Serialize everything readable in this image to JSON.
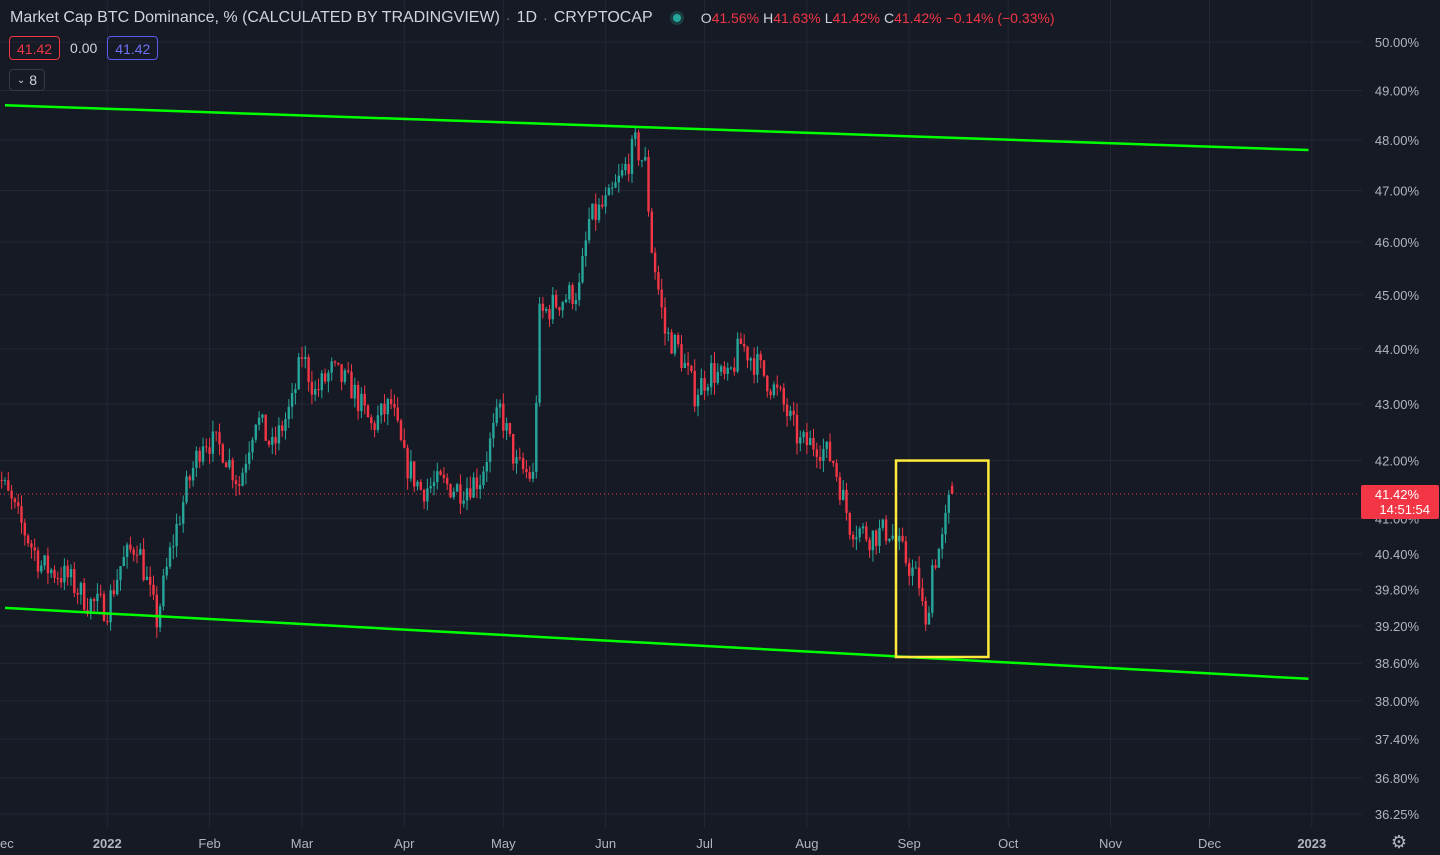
{
  "legend": {
    "title": "Market Cap BTC Dominance, % (CALCULATED BY TRADINGVIEW)",
    "interval": "1D",
    "exchange": "CRYPTOCAP",
    "o_label": "O",
    "o_value": "41.56%",
    "h_label": "H",
    "h_value": "41.63%",
    "l_label": "L",
    "l_value": "41.42%",
    "c_label": "C",
    "c_value": "41.42%",
    "change": "−0.14% (−0.33%)"
  },
  "indicator_inputs": {
    "sell": "41.42",
    "spread": "0.00",
    "buy": "41.42",
    "collapse_count": "8"
  },
  "price_axis": {
    "ticks": [
      {
        "label": "50.00%",
        "value": 50.0
      },
      {
        "label": "49.00%",
        "value": 49.0
      },
      {
        "label": "48.00%",
        "value": 48.0
      },
      {
        "label": "47.00%",
        "value": 47.0
      },
      {
        "label": "46.00%",
        "value": 46.0
      },
      {
        "label": "45.00%",
        "value": 45.0
      },
      {
        "label": "44.00%",
        "value": 44.0
      },
      {
        "label": "43.00%",
        "value": 43.0
      },
      {
        "label": "42.00%",
        "value": 42.0
      },
      {
        "label": "41.00%",
        "value": 41.0
      },
      {
        "label": "40.40%",
        "value": 40.4
      },
      {
        "label": "39.80%",
        "value": 39.8
      },
      {
        "label": "39.20%",
        "value": 39.2
      },
      {
        "label": "38.60%",
        "value": 38.6
      },
      {
        "label": "38.00%",
        "value": 38.0
      },
      {
        "label": "37.40%",
        "value": 37.4
      },
      {
        "label": "36.80%",
        "value": 36.8
      },
      {
        "label": "36.25%",
        "value": 36.25
      }
    ],
    "scale": "log",
    "current_price": "41.42%",
    "countdown": "14:51:54"
  },
  "time_axis": {
    "labels": [
      "ec",
      "2022",
      "Feb",
      "Mar",
      "Apr",
      "May",
      "Jun",
      "Jul",
      "Aug",
      "Sep",
      "Oct",
      "Nov",
      "Dec",
      "2023"
    ],
    "bold": [
      "2022",
      "2023"
    ]
  },
  "colors": {
    "background": "#161a25",
    "up": "#26a69a",
    "down": "#f23645",
    "channel": "#00ff00",
    "highlight_box": "#ffeb3b",
    "price_tag": "#f23645"
  },
  "drawings": {
    "channel_upper": {
      "start": [
        "2021-12-01",
        48.7
      ],
      "end": [
        "2022-12-31",
        47.8
      ]
    },
    "channel_lower": {
      "start": [
        "2021-12-01",
        39.5
      ],
      "end": [
        "2022-12-31",
        38.35
      ]
    },
    "highlight_box": {
      "from": "2022-08-28",
      "to": "2022-09-25",
      "top": 42.0,
      "bottom": 38.7
    }
  },
  "chart_data": {
    "type": "candlestick",
    "interval": "1D",
    "anchors": [
      {
        "date": "2021-11-27",
        "close": 42.0
      },
      {
        "date": "2021-12-05",
        "close": 41.0
      },
      {
        "date": "2021-12-12",
        "close": 40.2
      },
      {
        "date": "2021-12-20",
        "close": 40.0
      },
      {
        "date": "2021-12-26",
        "close": 39.6
      },
      {
        "date": "2022-01-01",
        "close": 39.5
      },
      {
        "date": "2022-01-05",
        "close": 40.2
      },
      {
        "date": "2022-01-10",
        "close": 40.6
      },
      {
        "date": "2022-01-14",
        "close": 39.7
      },
      {
        "date": "2022-01-16",
        "close": 39.3
      },
      {
        "date": "2022-01-20",
        "close": 40.4
      },
      {
        "date": "2022-01-25",
        "close": 41.5
      },
      {
        "date": "2022-01-30",
        "close": 42.4
      },
      {
        "date": "2022-02-05",
        "close": 42.2
      },
      {
        "date": "2022-02-10",
        "close": 41.6
      },
      {
        "date": "2022-02-15",
        "close": 42.8
      },
      {
        "date": "2022-02-20",
        "close": 42.2
      },
      {
        "date": "2022-02-26",
        "close": 43.0
      },
      {
        "date": "2022-03-01",
        "close": 43.9
      },
      {
        "date": "2022-03-05",
        "close": 43.2
      },
      {
        "date": "2022-03-10",
        "close": 43.6
      },
      {
        "date": "2022-03-16",
        "close": 43.3
      },
      {
        "date": "2022-03-22",
        "close": 42.6
      },
      {
        "date": "2022-03-28",
        "close": 43.0
      },
      {
        "date": "2022-04-01",
        "close": 42.0
      },
      {
        "date": "2022-04-06",
        "close": 41.5
      },
      {
        "date": "2022-04-12",
        "close": 41.6
      },
      {
        "date": "2022-04-18",
        "close": 41.5
      },
      {
        "date": "2022-04-24",
        "close": 41.7
      },
      {
        "date": "2022-04-30",
        "close": 42.9
      },
      {
        "date": "2022-05-05",
        "close": 41.9
      },
      {
        "date": "2022-05-10",
        "close": 41.7
      },
      {
        "date": "2022-05-12",
        "close": 44.6
      },
      {
        "date": "2022-05-18",
        "close": 44.9
      },
      {
        "date": "2022-05-24",
        "close": 45.1
      },
      {
        "date": "2022-05-27",
        "close": 46.4
      },
      {
        "date": "2022-06-02",
        "close": 46.8
      },
      {
        "date": "2022-06-06",
        "close": 47.3
      },
      {
        "date": "2022-06-10",
        "close": 47.9
      },
      {
        "date": "2022-06-13",
        "close": 47.5
      },
      {
        "date": "2022-06-15",
        "close": 45.9
      },
      {
        "date": "2022-06-19",
        "close": 44.3
      },
      {
        "date": "2022-06-23",
        "close": 44.0
      },
      {
        "date": "2022-06-28",
        "close": 43.2
      },
      {
        "date": "2022-07-03",
        "close": 43.6
      },
      {
        "date": "2022-07-08",
        "close": 43.4
      },
      {
        "date": "2022-07-12",
        "close": 44.1
      },
      {
        "date": "2022-07-17",
        "close": 43.7
      },
      {
        "date": "2022-07-24",
        "close": 43.1
      },
      {
        "date": "2022-07-30",
        "close": 42.3
      },
      {
        "date": "2022-08-04",
        "close": 42.3
      },
      {
        "date": "2022-08-09",
        "close": 42.0
      },
      {
        "date": "2022-08-14",
        "close": 40.9
      },
      {
        "date": "2022-08-20",
        "close": 40.7
      },
      {
        "date": "2022-08-26",
        "close": 40.8
      },
      {
        "date": "2022-08-30",
        "close": 40.4
      },
      {
        "date": "2022-09-04",
        "close": 39.9
      },
      {
        "date": "2022-09-06",
        "close": 39.1
      },
      {
        "date": "2022-09-08",
        "close": 40.2
      },
      {
        "date": "2022-09-11",
        "close": 40.6
      },
      {
        "date": "2022-09-14",
        "close": 41.56
      }
    ],
    "last_candle": {
      "open": 41.56,
      "high": 41.63,
      "low": 41.42,
      "close": 41.42
    }
  }
}
